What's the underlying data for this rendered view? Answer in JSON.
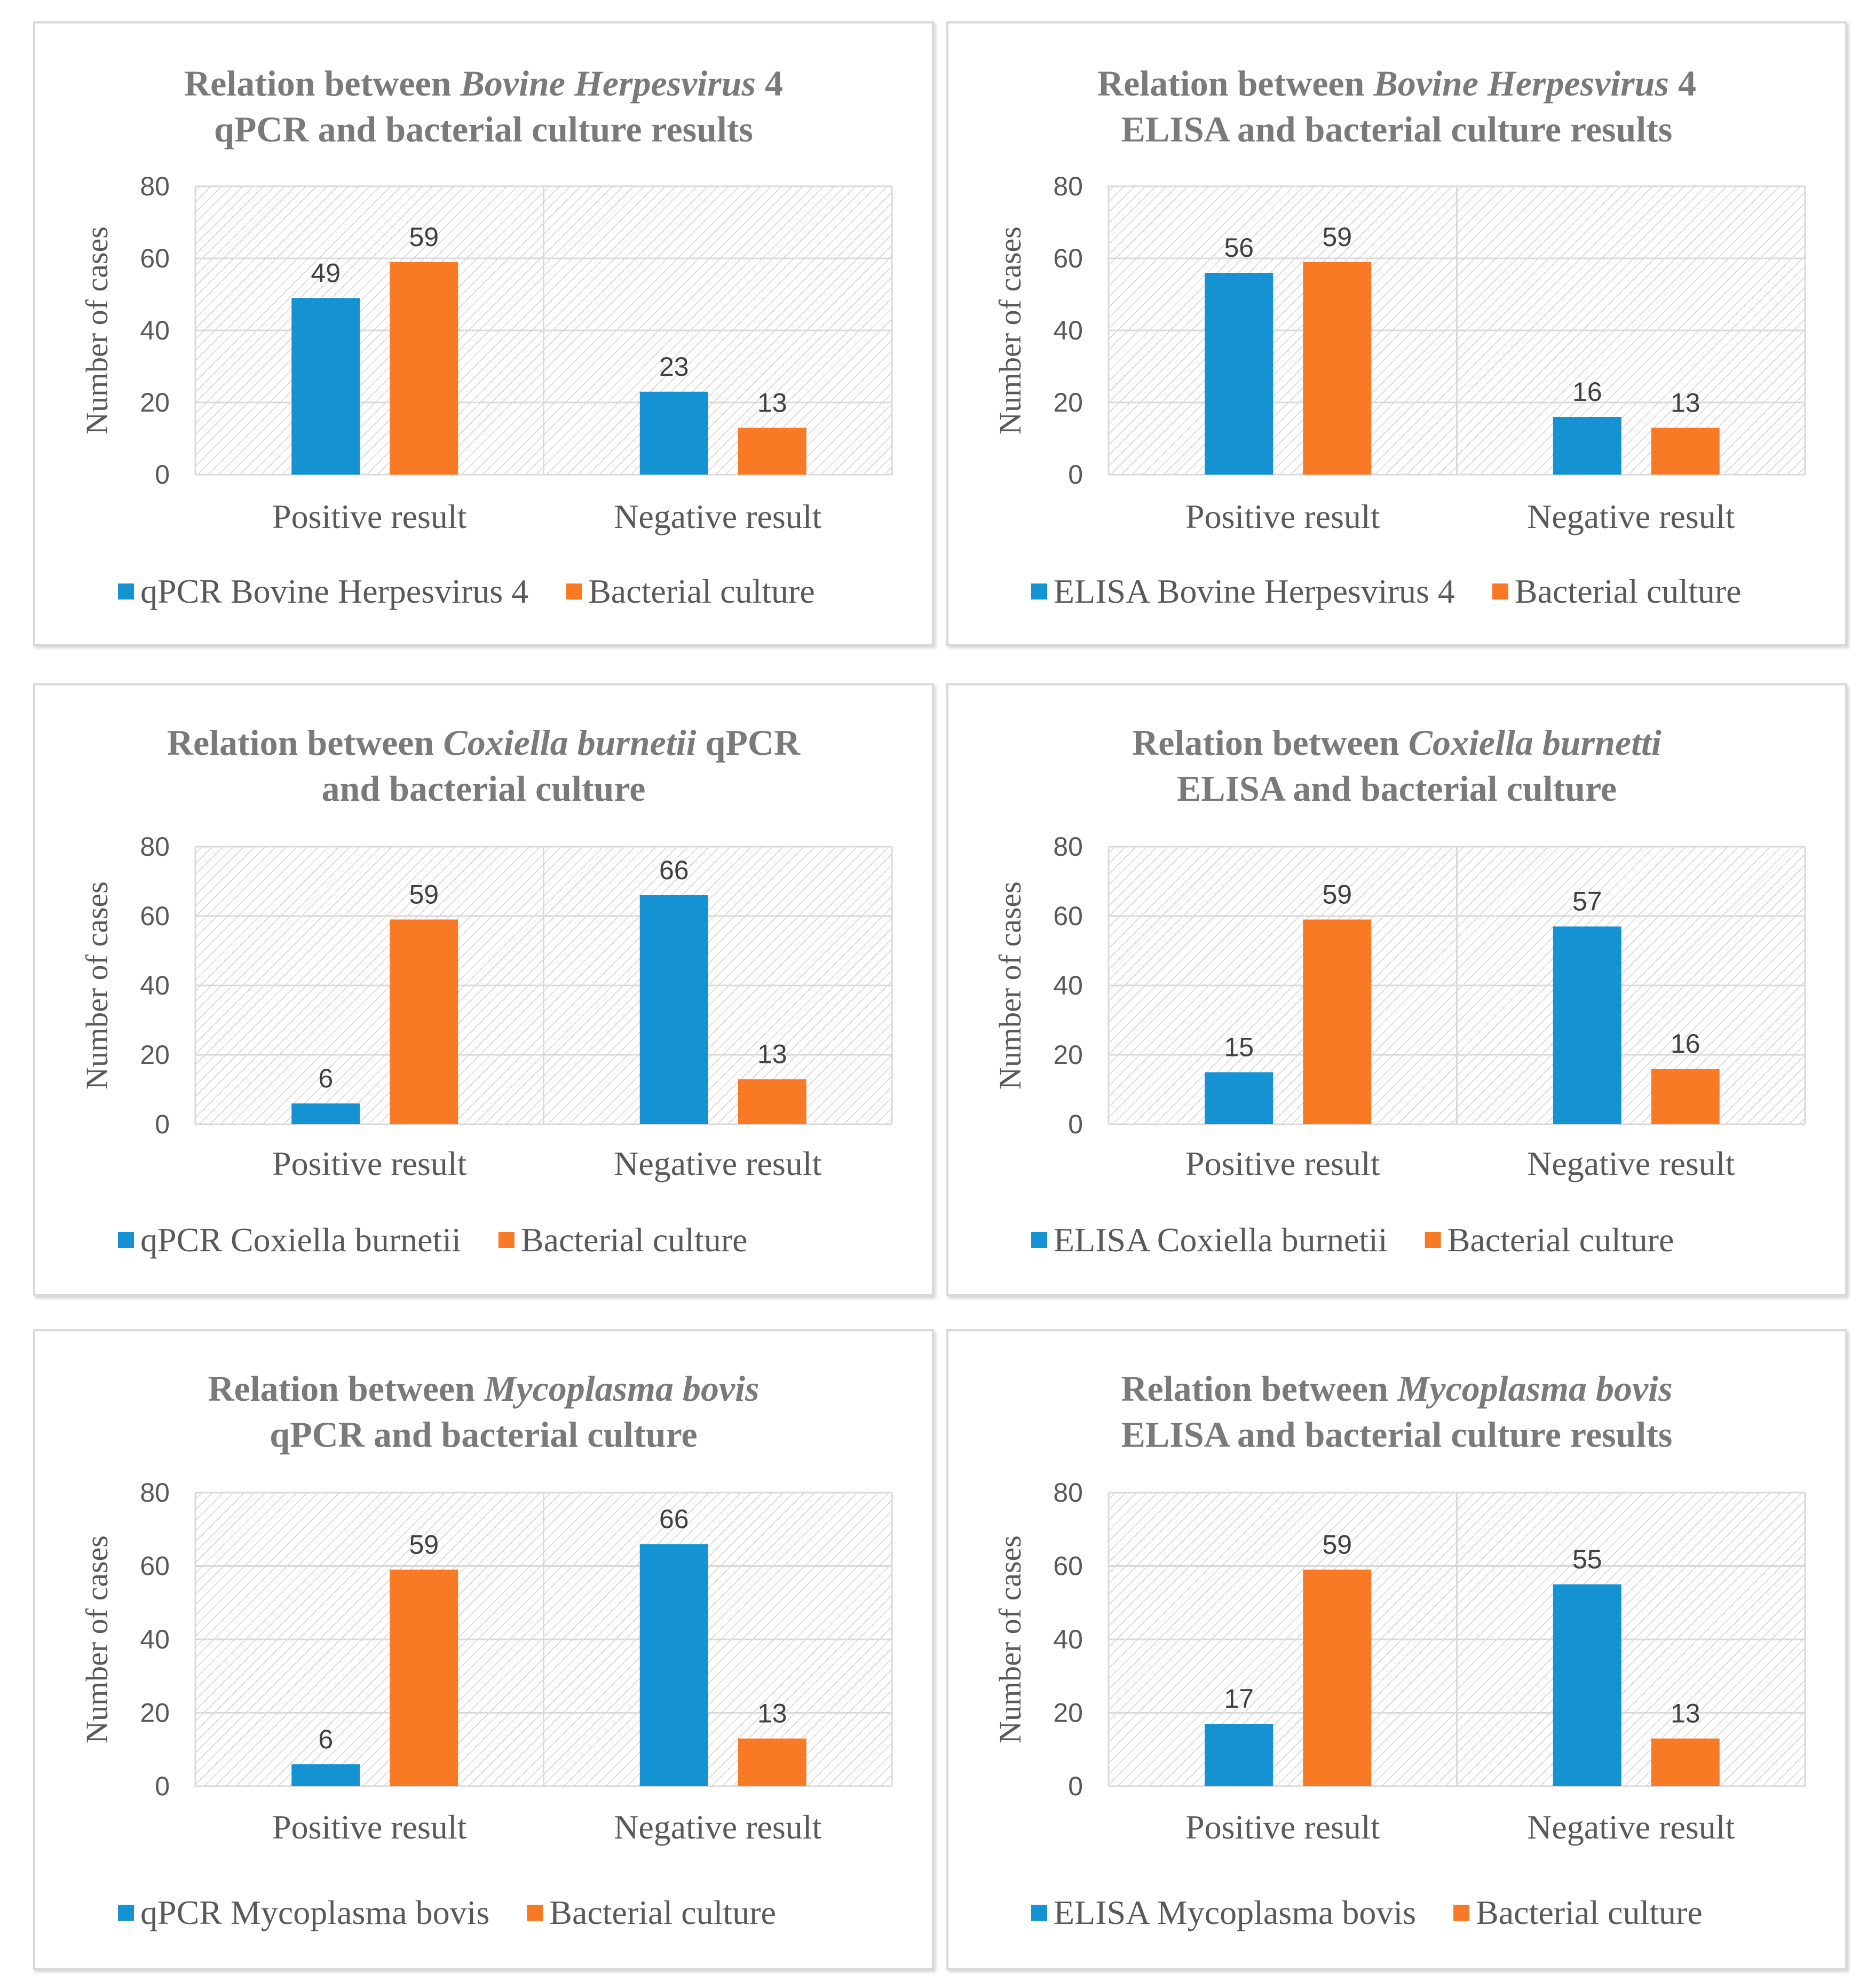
{
  "colors": {
    "series_a": "#1592d2",
    "series_b": "#f97a24",
    "grid": "#d9d9d9",
    "hatch": "#bfbfbf",
    "text": "#595959",
    "title": "#7a7a7a"
  },
  "chart_data": [
    {
      "type": "bar",
      "title": [
        [
          {
            "t": "Relation between "
          },
          {
            "t": "Bovine Herpesvirus",
            "i": true
          },
          {
            "t": " 4"
          }
        ],
        [
          {
            "t": "qPCR and bacterial culture results"
          }
        ]
      ],
      "ylabel": "Number of cases",
      "xlabel": "",
      "ylim": [
        0,
        80
      ],
      "yticks": [
        0,
        20,
        40,
        60,
        80
      ],
      "categories": [
        "Positive result",
        "Negative result"
      ],
      "series": [
        {
          "name": "qPCR Bovine Herpesvirus 4",
          "values": [
            49,
            23
          ]
        },
        {
          "name": "Bacterial culture",
          "values": [
            59,
            13
          ]
        }
      ],
      "grid": true,
      "legend": "bottom"
    },
    {
      "type": "bar",
      "title": [
        [
          {
            "t": "Relation between "
          },
          {
            "t": "Bovine Herpesvirus",
            "i": true
          },
          {
            "t": " 4"
          }
        ],
        [
          {
            "t": "ELISA and bacterial culture results"
          }
        ]
      ],
      "ylabel": "Number of cases",
      "xlabel": "",
      "ylim": [
        0,
        80
      ],
      "yticks": [
        0,
        20,
        40,
        60,
        80
      ],
      "categories": [
        "Positive result",
        "Negative result"
      ],
      "series": [
        {
          "name": "ELISA Bovine Herpesvirus 4",
          "values": [
            56,
            16
          ]
        },
        {
          "name": "Bacterial culture",
          "values": [
            59,
            13
          ]
        }
      ],
      "grid": true,
      "legend": "bottom"
    },
    {
      "type": "bar",
      "title": [
        [
          {
            "t": "Relation between "
          },
          {
            "t": "Coxiella burnetii",
            "i": true
          },
          {
            "t": " qPCR"
          }
        ],
        [
          {
            "t": "and bacterial culture"
          }
        ]
      ],
      "ylabel": "Number of cases",
      "xlabel": "",
      "ylim": [
        0,
        80
      ],
      "yticks": [
        0,
        20,
        40,
        60,
        80
      ],
      "categories": [
        "Positive result",
        "Negative result"
      ],
      "series": [
        {
          "name": "qPCR Coxiella burnetii",
          "values": [
            6,
            66
          ]
        },
        {
          "name": "Bacterial culture",
          "values": [
            59,
            13
          ]
        }
      ],
      "grid": true,
      "legend": "bottom"
    },
    {
      "type": "bar",
      "title": [
        [
          {
            "t": "Relation between "
          },
          {
            "t": "Coxiella burnetti",
            "i": true
          }
        ],
        [
          {
            "t": "ELISA and bacterial culture"
          }
        ]
      ],
      "ylabel": "Number of cases",
      "xlabel": "",
      "ylim": [
        0,
        80
      ],
      "yticks": [
        0,
        20,
        40,
        60,
        80
      ],
      "categories": [
        "Positive result",
        "Negative result"
      ],
      "series": [
        {
          "name": "ELISA Coxiella burnetii",
          "values": [
            15,
            57
          ]
        },
        {
          "name": "Bacterial culture",
          "values": [
            59,
            16
          ]
        }
      ],
      "grid": true,
      "legend": "bottom"
    },
    {
      "type": "bar",
      "title": [
        [
          {
            "t": "Relation between "
          },
          {
            "t": "Mycoplasma bovis",
            "i": true
          }
        ],
        [
          {
            "t": "qPCR and bacterial culture"
          }
        ]
      ],
      "ylabel": "Number of cases",
      "xlabel": "",
      "ylim": [
        0,
        80
      ],
      "yticks": [
        0,
        20,
        40,
        60,
        80
      ],
      "categories": [
        "Positive result",
        "Negative result"
      ],
      "series": [
        {
          "name": "qPCR Mycoplasma bovis",
          "values": [
            6,
            66
          ]
        },
        {
          "name": "Bacterial culture",
          "values": [
            59,
            13
          ]
        }
      ],
      "grid": true,
      "legend": "bottom"
    },
    {
      "type": "bar",
      "title": [
        [
          {
            "t": "Relation between "
          },
          {
            "t": "Mycoplasma bovis",
            "i": true
          }
        ],
        [
          {
            "t": "ELISA and bacterial culture results"
          }
        ]
      ],
      "ylabel": "Number of cases",
      "xlabel": "",
      "ylim": [
        0,
        80
      ],
      "yticks": [
        0,
        20,
        40,
        60,
        80
      ],
      "categories": [
        "Positive result",
        "Negative result"
      ],
      "series": [
        {
          "name": "ELISA Mycoplasma bovis",
          "values": [
            17,
            55
          ]
        },
        {
          "name": "Bacterial culture",
          "values": [
            59,
            13
          ]
        }
      ],
      "grid": true,
      "legend": "bottom"
    }
  ]
}
